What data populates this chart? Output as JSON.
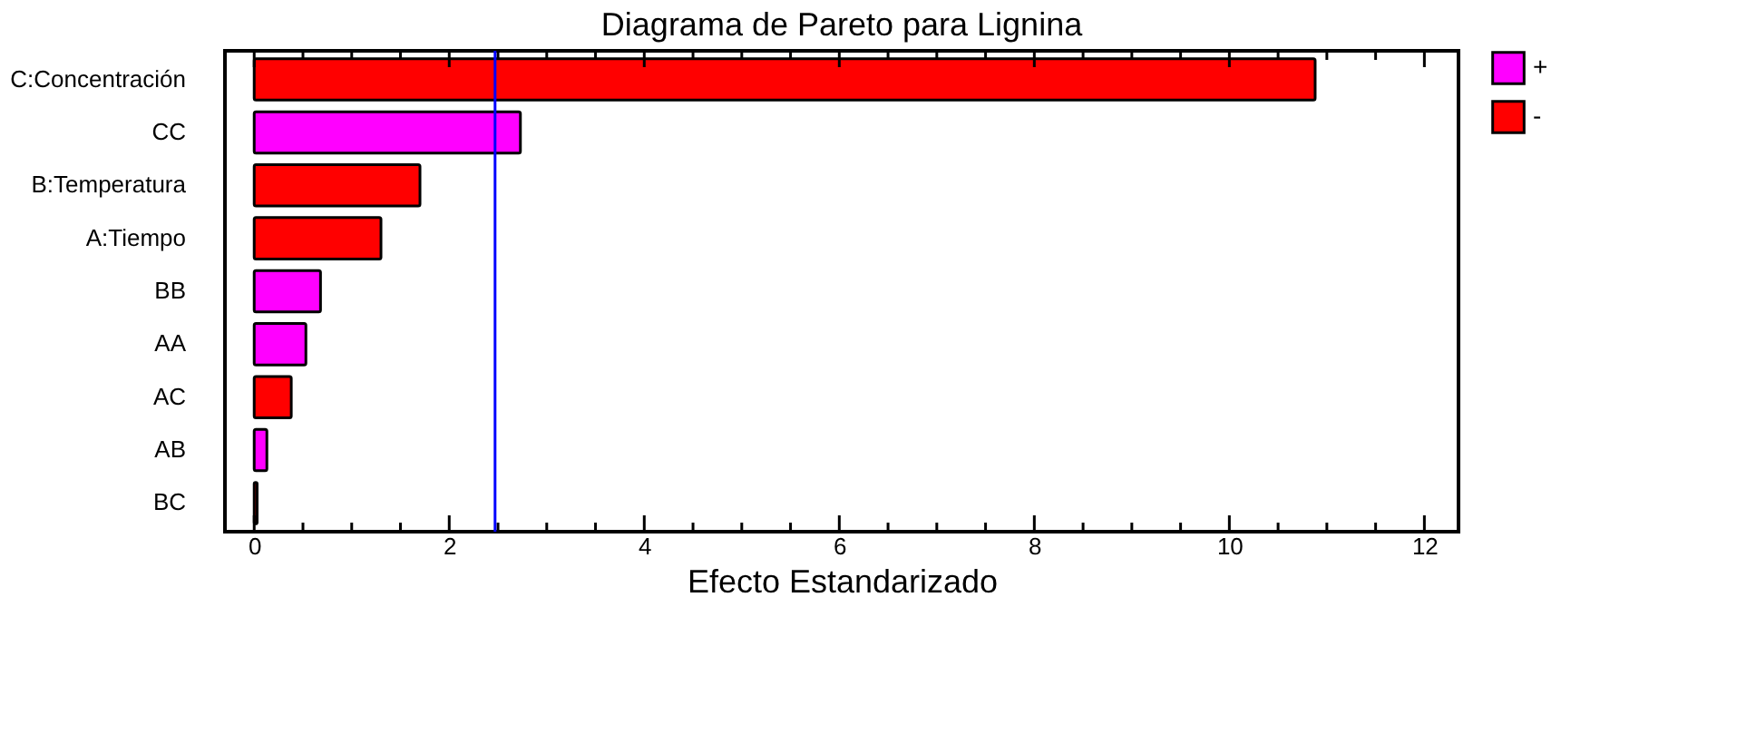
{
  "chart_data": {
    "type": "bar",
    "orientation": "horizontal",
    "title": "Diagrama de Pareto para Lignina",
    "xlabel": "Efecto Estandarizado",
    "categories": [
      "C:Concentración",
      "CC",
      "B:Temperatura",
      "A:Tiempo",
      "BB",
      "AA",
      "AC",
      "AB",
      "BC"
    ],
    "series": [
      {
        "name": "+",
        "color": "#ff00ff",
        "values": [
          null,
          2.73,
          null,
          null,
          0.68,
          0.53,
          null,
          0.13,
          null
        ]
      },
      {
        "name": "-",
        "color": "#ff0000",
        "values": [
          10.88,
          null,
          1.7,
          1.3,
          null,
          null,
          0.38,
          null,
          0.03
        ]
      }
    ],
    "xlim": [
      -0.3,
      12.35
    ],
    "xticks": [
      0,
      {
        "value": 0.5,
        "label": null
      },
      {
        "value": 1,
        "label": null
      },
      {
        "value": 1.5,
        "label": null
      },
      2,
      {
        "value": 2.5,
        "label": null
      },
      {
        "value": 3,
        "label": null
      },
      {
        "value": 3.5,
        "label": null
      },
      4,
      {
        "value": 4.5,
        "label": null
      },
      {
        "value": 5,
        "label": null
      },
      {
        "value": 5.5,
        "label": null
      },
      6,
      {
        "value": 6.5,
        "label": null
      },
      {
        "value": 7,
        "label": null
      },
      {
        "value": 7.5,
        "label": null
      },
      8,
      {
        "value": 8.5,
        "label": null
      },
      {
        "value": 9,
        "label": null
      },
      {
        "value": 9.5,
        "label": null
      },
      10,
      {
        "value": 10.5,
        "label": null
      },
      {
        "value": 11,
        "label": null
      },
      {
        "value": 11.5,
        "label": null
      },
      12
    ],
    "ref_lines": [
      {
        "axis": "x",
        "value": 2.47,
        "color": "#0000ff"
      }
    ],
    "legend": "top right",
    "grid": false
  }
}
